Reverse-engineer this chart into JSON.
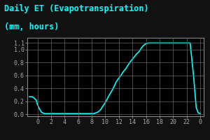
{
  "title_line1": "Daily ET (Evapotranspiration)",
  "title_line2": "(mm, hours)",
  "bg_color": "#000000",
  "outer_bg_color": "#111111",
  "border_color": "#888888",
  "line_color": "#00ffff",
  "line_width": 1.2,
  "ylim_min": -0.03,
  "ylim_max": 1.18,
  "xlim_min": -1.5,
  "xlim_max": 24.5,
  "yticks": [
    0.0,
    0.2,
    0.4,
    0.6,
    0.8,
    1.0,
    1.1
  ],
  "ytick_labels": [
    "0.0",
    "0.2",
    "0.4",
    "0.6",
    "0.8",
    "1.0",
    "1.1"
  ],
  "xticks": [
    0,
    2,
    4,
    6,
    8,
    10,
    12,
    14,
    16,
    18,
    20,
    22,
    24
  ],
  "xtick_labels": [
    "0",
    "2",
    "4",
    "6",
    "8",
    "10",
    "12",
    "14",
    "16",
    "18",
    "20",
    "22",
    "0"
  ],
  "grid_color": "#666666",
  "title_color": "#00ffff",
  "tick_color": "#aaaaaa",
  "title_fontsize": 8.5,
  "tick_fontsize": 6,
  "x": [
    -1.2,
    -1.0,
    -0.8,
    -0.5,
    -0.2,
    0.0,
    0.3,
    0.6,
    1.0,
    1.5,
    2.0,
    2.5,
    3.0,
    3.5,
    4.0,
    4.5,
    5.0,
    5.5,
    6.0,
    6.5,
    7.0,
    7.5,
    8.0,
    8.3,
    8.6,
    9.0,
    9.3,
    9.6,
    10.0,
    10.3,
    10.6,
    11.0,
    11.3,
    11.6,
    12.0,
    12.3,
    12.6,
    13.0,
    13.3,
    13.6,
    14.0,
    14.3,
    14.6,
    15.0,
    15.3,
    15.6,
    16.0,
    16.3,
    16.6,
    17.0,
    17.3,
    17.6,
    18.0,
    18.5,
    19.0,
    19.5,
    20.0,
    20.5,
    21.0,
    21.5,
    22.0,
    22.5,
    23.0,
    23.4,
    23.7,
    24.0
  ],
  "y": [
    0.27,
    0.27,
    0.27,
    0.25,
    0.22,
    0.15,
    0.08,
    0.03,
    0.01,
    0.01,
    0.01,
    0.01,
    0.01,
    0.01,
    0.01,
    0.01,
    0.01,
    0.01,
    0.01,
    0.01,
    0.01,
    0.01,
    0.01,
    0.01,
    0.02,
    0.04,
    0.07,
    0.12,
    0.18,
    0.24,
    0.3,
    0.37,
    0.43,
    0.5,
    0.56,
    0.6,
    0.65,
    0.7,
    0.75,
    0.8,
    0.85,
    0.89,
    0.93,
    0.97,
    1.02,
    1.06,
    1.09,
    1.1,
    1.1,
    1.1,
    1.1,
    1.1,
    1.1,
    1.1,
    1.1,
    1.1,
    1.1,
    1.1,
    1.1,
    1.1,
    1.1,
    1.1,
    0.6,
    0.1,
    0.02,
    0.01
  ]
}
